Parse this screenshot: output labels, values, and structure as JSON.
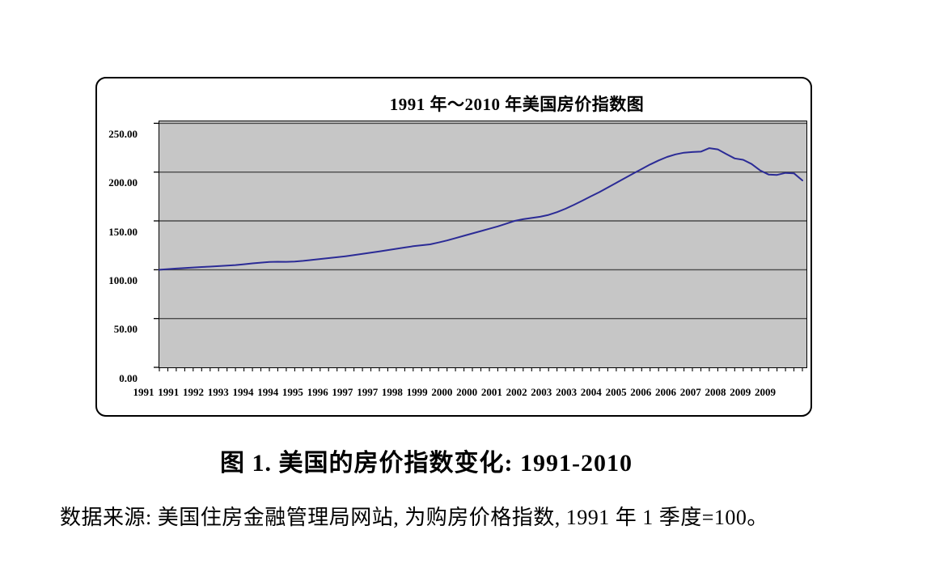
{
  "figure": {
    "caption": "图 1. 美国的房价指数变化: 1991-2010",
    "source_note": "数据来源: 美国住房金融管理局网站, 为购房价格指数, 1991 年 1 季度=100。"
  },
  "chart_data": {
    "type": "line",
    "title": "1991 年～2010 年美国房价指数图",
    "x_frequency": "quarterly",
    "x_start": "1991Q1",
    "x_end": "2010Q1",
    "x_tick_labels": [
      "1991",
      "1991",
      "1992",
      "1993",
      "1994",
      "1994",
      "1995",
      "1996",
      "1997",
      "1997",
      "1998",
      "1999",
      "2000",
      "2000",
      "2001",
      "2002",
      "2003",
      "2003",
      "2004",
      "2005",
      "2006",
      "2006",
      "2007",
      "2008",
      "2009",
      "2009"
    ],
    "y_tick_labels": [
      "250.00",
      "200.00",
      "150.00",
      "100.00",
      "50.00",
      "0.00"
    ],
    "y_gridline_values": [
      50,
      100,
      150,
      200,
      250
    ],
    "ylim": [
      0,
      252
    ],
    "grid": "horizontal",
    "legend": "none",
    "plot_background": "#c6c6c6",
    "gridline_color": "#4a4a4a",
    "axis_color": "#000000",
    "series": [
      {
        "name": "美国房价指数 (1991 年 1 季度=100)",
        "color": "#2b2b96",
        "values": [
          100.0,
          100.6,
          101.2,
          101.7,
          102.3,
          102.8,
          103.2,
          103.7,
          104.2,
          104.8,
          105.6,
          106.5,
          107.3,
          107.9,
          108.2,
          108.1,
          108.4,
          109.1,
          110.0,
          111.0,
          111.9,
          112.8,
          113.8,
          115.0,
          116.3,
          117.5,
          118.8,
          120.1,
          121.4,
          122.8,
          124.1,
          125.1,
          126.0,
          127.9,
          130.0,
          132.4,
          134.8,
          137.2,
          139.6,
          142.0,
          144.4,
          147.2,
          150.0,
          151.8,
          153.0,
          154.3,
          156.2,
          159.0,
          162.5,
          166.5,
          170.8,
          175.2,
          179.5,
          184.2,
          189.0,
          193.8,
          198.5,
          203.2,
          207.8,
          212.0,
          215.5,
          218.2,
          219.9,
          220.6,
          221.0,
          224.6,
          223.3,
          218.5,
          214.0,
          212.6,
          208.3,
          201.8,
          197.5,
          197.1,
          199.2,
          198.8,
          191.5
        ]
      }
    ]
  }
}
